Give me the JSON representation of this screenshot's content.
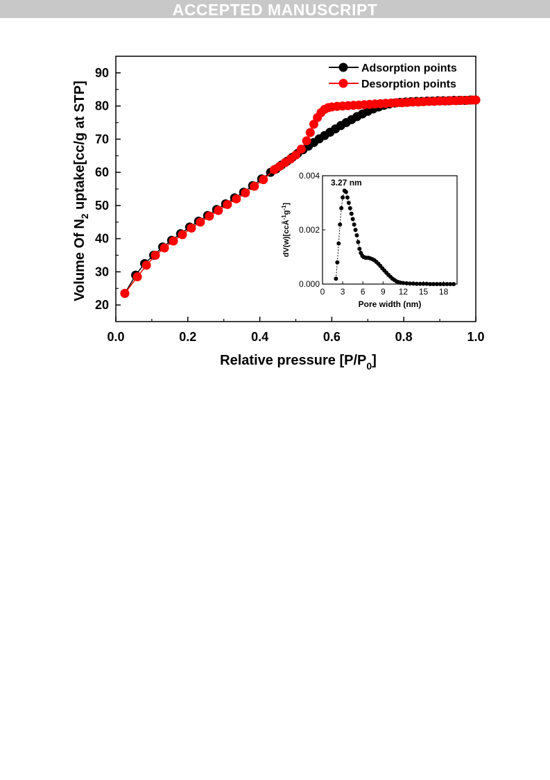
{
  "banner": {
    "text": "ACCEPTED MANUSCRIPT"
  },
  "colors": {
    "adsorption": "#000000",
    "desorption": "#ff0000",
    "banner_bg": "#c8c8c8"
  },
  "chart_data": [
    {
      "type": "scatter",
      "title": "",
      "xlabel": "Relative pressure [P/P0]",
      "xlabel_main": "Relative pressure [P/P",
      "xlabel_sub": "0",
      "xlabel_end": "]",
      "ylabel": "Volume Of N2 uptake[cc/g at STP]",
      "ylabel_pre": "Volume Of N",
      "ylabel_sub": "2",
      "ylabel_post": " uptake[cc/g at STP]",
      "xlim": [
        0.0,
        1.0
      ],
      "ylim": [
        15,
        95
      ],
      "xticks": [
        "0.0",
        "0.2",
        "0.4",
        "0.6",
        "0.8",
        "1.0"
      ],
      "yticks": [
        "20",
        "30",
        "40",
        "50",
        "60",
        "70",
        "80",
        "90"
      ],
      "legend_position": "top-right",
      "series": [
        {
          "name": "Adsorption points",
          "x": [
            0.025,
            0.055,
            0.08,
            0.105,
            0.13,
            0.155,
            0.18,
            0.205,
            0.23,
            0.255,
            0.28,
            0.305,
            0.33,
            0.355,
            0.38,
            0.405,
            0.43,
            0.445,
            0.46,
            0.475,
            0.49,
            0.505,
            0.52,
            0.535,
            0.55,
            0.565,
            0.58,
            0.595,
            0.61,
            0.625,
            0.64,
            0.655,
            0.67,
            0.685,
            0.7,
            0.715,
            0.73,
            0.745,
            0.76,
            0.775,
            0.79,
            0.805,
            0.82,
            0.835,
            0.85,
            0.865,
            0.88,
            0.895,
            0.91,
            0.925,
            0.94,
            0.955,
            0.97,
            0.985,
            1.0
          ],
          "y": [
            23.5,
            29.0,
            32.5,
            35.0,
            37.5,
            39.5,
            41.5,
            43.5,
            45.3,
            47.0,
            48.8,
            50.5,
            52.3,
            54.0,
            56.0,
            58.0,
            60.0,
            61.0,
            62.2,
            63.3,
            64.5,
            65.7,
            66.8,
            67.9,
            69.0,
            70.1,
            71.1,
            72.1,
            73.1,
            74.1,
            75.0,
            75.9,
            76.8,
            77.6,
            78.4,
            79.1,
            79.7,
            80.2,
            80.6,
            80.9,
            81.1,
            81.2,
            81.3,
            81.4,
            81.4,
            81.5,
            81.5,
            81.6,
            81.6,
            81.6,
            81.7,
            81.7,
            81.7,
            81.8,
            81.8
          ]
        },
        {
          "name": "Desorption points",
          "x": [
            0.025,
            0.06,
            0.085,
            0.11,
            0.135,
            0.16,
            0.185,
            0.21,
            0.235,
            0.26,
            0.285,
            0.31,
            0.335,
            0.36,
            0.385,
            0.41,
            0.44,
            0.455,
            0.47,
            0.485,
            0.5,
            0.515,
            0.53,
            0.54,
            0.55,
            0.56,
            0.57,
            0.58,
            0.59,
            0.6,
            0.615,
            0.63,
            0.645,
            0.66,
            0.675,
            0.69,
            0.705,
            0.72,
            0.735,
            0.75,
            0.765,
            0.78,
            0.795,
            0.81,
            0.825,
            0.84,
            0.855,
            0.87,
            0.885,
            0.9,
            0.915,
            0.93,
            0.945,
            0.96,
            0.975,
            0.99,
            1.0
          ],
          "y": [
            23.5,
            28.5,
            32.0,
            35.0,
            37.2,
            39.3,
            41.2,
            43.2,
            45.0,
            46.8,
            48.5,
            50.3,
            52.0,
            53.8,
            55.8,
            57.8,
            60.8,
            61.8,
            62.9,
            64.0,
            65.2,
            67.0,
            69.5,
            72.0,
            74.5,
            76.5,
            78.0,
            79.0,
            79.5,
            79.7,
            79.9,
            80.0,
            80.1,
            80.2,
            80.3,
            80.4,
            80.5,
            80.6,
            80.7,
            80.8,
            80.9,
            81.0,
            81.0,
            81.1,
            81.2,
            81.2,
            81.3,
            81.4,
            81.4,
            81.5,
            81.5,
            81.6,
            81.6,
            81.7,
            81.7,
            81.8,
            81.8
          ]
        }
      ]
    },
    {
      "type": "scatter",
      "title": "",
      "xlabel": "Pore width (nm)",
      "ylabel": "dV(w)[ccÅ-1g-1]",
      "ylabel_parts": [
        "dV(w)[ccÅ",
        "-1",
        "g",
        "-1",
        "]"
      ],
      "xlim": [
        0,
        20
      ],
      "ylim": [
        0,
        0.004
      ],
      "xticks": [
        "0",
        "3",
        "6",
        "9",
        "12",
        "15",
        "18"
      ],
      "yticks": [
        "0.000",
        "0.002",
        "0.004"
      ],
      "annotation": "3.27 nm",
      "series": [
        {
          "x": [
            2.0,
            2.2,
            2.4,
            2.6,
            2.8,
            3.0,
            3.27,
            3.5,
            3.7,
            3.9,
            4.1,
            4.3,
            4.5,
            4.7,
            4.9,
            5.1,
            5.3,
            5.5,
            5.7,
            5.9,
            6.1,
            6.3,
            6.5,
            6.8,
            7.1,
            7.4,
            7.7,
            8.0,
            8.3,
            8.6,
            8.9,
            9.2,
            9.5,
            9.8,
            10.1,
            10.4,
            10.7,
            11.0,
            11.3,
            11.6,
            12.0,
            12.5,
            13.0,
            13.5,
            14.0,
            14.5,
            15.0,
            15.5,
            16.0,
            16.5,
            17.0,
            17.5,
            18.0,
            18.5,
            19.0,
            19.5
          ],
          "y": [
            0.0002,
            0.0008,
            0.0015,
            0.0022,
            0.0028,
            0.0032,
            0.00345,
            0.0034,
            0.0032,
            0.003,
            0.0028,
            0.0026,
            0.0024,
            0.0022,
            0.002,
            0.0018,
            0.00155,
            0.0013,
            0.00115,
            0.00105,
            0.001,
            0.00098,
            0.00097,
            0.00097,
            0.00095,
            0.00092,
            0.00088,
            0.00082,
            0.00075,
            0.00067,
            0.00058,
            0.0005,
            0.00042,
            0.00034,
            0.00027,
            0.0002,
            0.00015,
            0.0001,
            7e-05,
            5e-05,
            4e-05,
            3e-05,
            2e-05,
            2e-05,
            1e-05,
            1e-05,
            1e-05,
            1e-05,
            0.0,
            0.0,
            0.0,
            0.0,
            0.0,
            0.0,
            0.0,
            0.0
          ]
        }
      ]
    }
  ]
}
